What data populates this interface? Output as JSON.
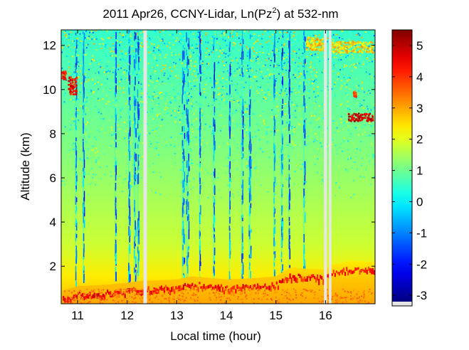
{
  "figure": {
    "title_main": "2011 Apr26, CCNY-Lidar, Ln(Pz",
    "title_sup": "2",
    "title_end": ") at 532-nm"
  },
  "chart_data": {
    "type": "heatmap",
    "title": "2011 Apr26, CCNY-Lidar, Ln(Pz2) at 532-nm",
    "xlabel": "Local time (hour)",
    "ylabel": "Altitude (km)",
    "xlim": [
      10.67,
      17.0
    ],
    "ylim": [
      0.3,
      12.7
    ],
    "xticks": [
      11,
      12,
      13,
      14,
      15,
      16
    ],
    "yticks": [
      2,
      4,
      6,
      8,
      10,
      12
    ],
    "colorbar": {
      "colormap": "jet",
      "range": [
        -3.2,
        5.5
      ],
      "ticks": [
        -3,
        -2,
        -1,
        0,
        1,
        2,
        3,
        4,
        5
      ]
    },
    "data_gaps_hours": [
      [
        12.33,
        12.4
      ],
      [
        15.97,
        16.03
      ],
      [
        16.07,
        16.12
      ]
    ],
    "background_profile": [
      {
        "altitude_km": 0.5,
        "value": 2.8
      },
      {
        "altitude_km": 1.5,
        "value": 2.4
      },
      {
        "altitude_km": 3.0,
        "value": 1.8
      },
      {
        "altitude_km": 5.0,
        "value": 1.5
      },
      {
        "altitude_km": 7.0,
        "value": 1.2
      },
      {
        "altitude_km": 9.0,
        "value": 0.95
      },
      {
        "altitude_km": 11.0,
        "value": 0.7
      },
      {
        "altitude_km": 12.7,
        "value": 0.5
      }
    ],
    "boundary_layer_top_km": [
      {
        "time": 10.7,
        "height": 0.55
      },
      {
        "time": 11.0,
        "height": 0.75
      },
      {
        "time": 11.5,
        "height": 0.8
      },
      {
        "time": 12.0,
        "height": 0.9
      },
      {
        "time": 12.33,
        "height": 1.0
      },
      {
        "time": 12.5,
        "height": 1.0
      },
      {
        "time": 13.0,
        "height": 1.05
      },
      {
        "time": 13.3,
        "height": 1.2
      },
      {
        "time": 14.0,
        "height": 1.05
      },
      {
        "time": 14.5,
        "height": 1.1
      },
      {
        "time": 15.0,
        "height": 1.2
      },
      {
        "time": 15.3,
        "height": 1.6
      },
      {
        "time": 15.5,
        "height": 1.55
      },
      {
        "time": 15.97,
        "height": 1.5
      },
      {
        "time": 16.12,
        "height": 1.7
      },
      {
        "time": 16.5,
        "height": 1.9
      },
      {
        "time": 17.0,
        "height": 1.85
      }
    ],
    "cloud_features": [
      {
        "time_start": 10.67,
        "time_end": 10.75,
        "alt_bottom_km": 10.5,
        "alt_top_km": 10.9,
        "value": 4.2
      },
      {
        "time_start": 10.8,
        "time_end": 10.97,
        "alt_bottom_km": 9.8,
        "alt_top_km": 10.6,
        "value": 4.5
      },
      {
        "time_start": 15.6,
        "time_end": 15.95,
        "alt_bottom_km": 11.8,
        "alt_top_km": 12.4,
        "value": 2.6
      },
      {
        "time_start": 16.12,
        "time_end": 16.95,
        "alt_bottom_km": 11.7,
        "alt_top_km": 12.2,
        "value": 2.5
      },
      {
        "time_start": 16.45,
        "time_end": 16.95,
        "alt_bottom_km": 8.6,
        "alt_top_km": 8.95,
        "value": 4.8
      },
      {
        "time_start": 16.55,
        "time_end": 16.6,
        "alt_bottom_km": 9.7,
        "alt_top_km": 9.95,
        "value": 4.0
      }
    ],
    "low_signal_streaks": [
      {
        "time": 10.95,
        "width": 0.02,
        "alt_top_km": 12.7
      },
      {
        "time": 11.1,
        "width": 0.03,
        "alt_top_km": 12.7
      },
      {
        "time": 11.75,
        "width": 0.02,
        "alt_top_km": 12.7
      },
      {
        "time": 12.02,
        "width": 0.03,
        "alt_top_km": 12.7
      },
      {
        "time": 12.13,
        "width": 0.04,
        "alt_top_km": 12.7
      },
      {
        "time": 12.2,
        "width": 0.03,
        "alt_top_km": 12.7
      },
      {
        "time": 13.1,
        "width": 0.05,
        "alt_top_km": 12.7
      },
      {
        "time": 13.18,
        "width": 0.06,
        "alt_top_km": 12.7
      },
      {
        "time": 13.45,
        "width": 0.02,
        "alt_top_km": 12.7
      },
      {
        "time": 13.73,
        "width": 0.03,
        "alt_top_km": 12.7
      },
      {
        "time": 14.05,
        "width": 0.02,
        "alt_top_km": 12.7
      },
      {
        "time": 14.3,
        "width": 0.03,
        "alt_top_km": 12.7
      },
      {
        "time": 14.45,
        "width": 0.04,
        "alt_top_km": 12.7
      },
      {
        "time": 14.95,
        "width": 0.02,
        "alt_top_km": 12.7
      },
      {
        "time": 15.1,
        "width": 0.03,
        "alt_top_km": 12.7
      },
      {
        "time": 15.25,
        "width": 0.02,
        "alt_top_km": 12.7
      },
      {
        "time": 15.55,
        "width": 0.03,
        "alt_top_km": 12.7
      }
    ]
  }
}
